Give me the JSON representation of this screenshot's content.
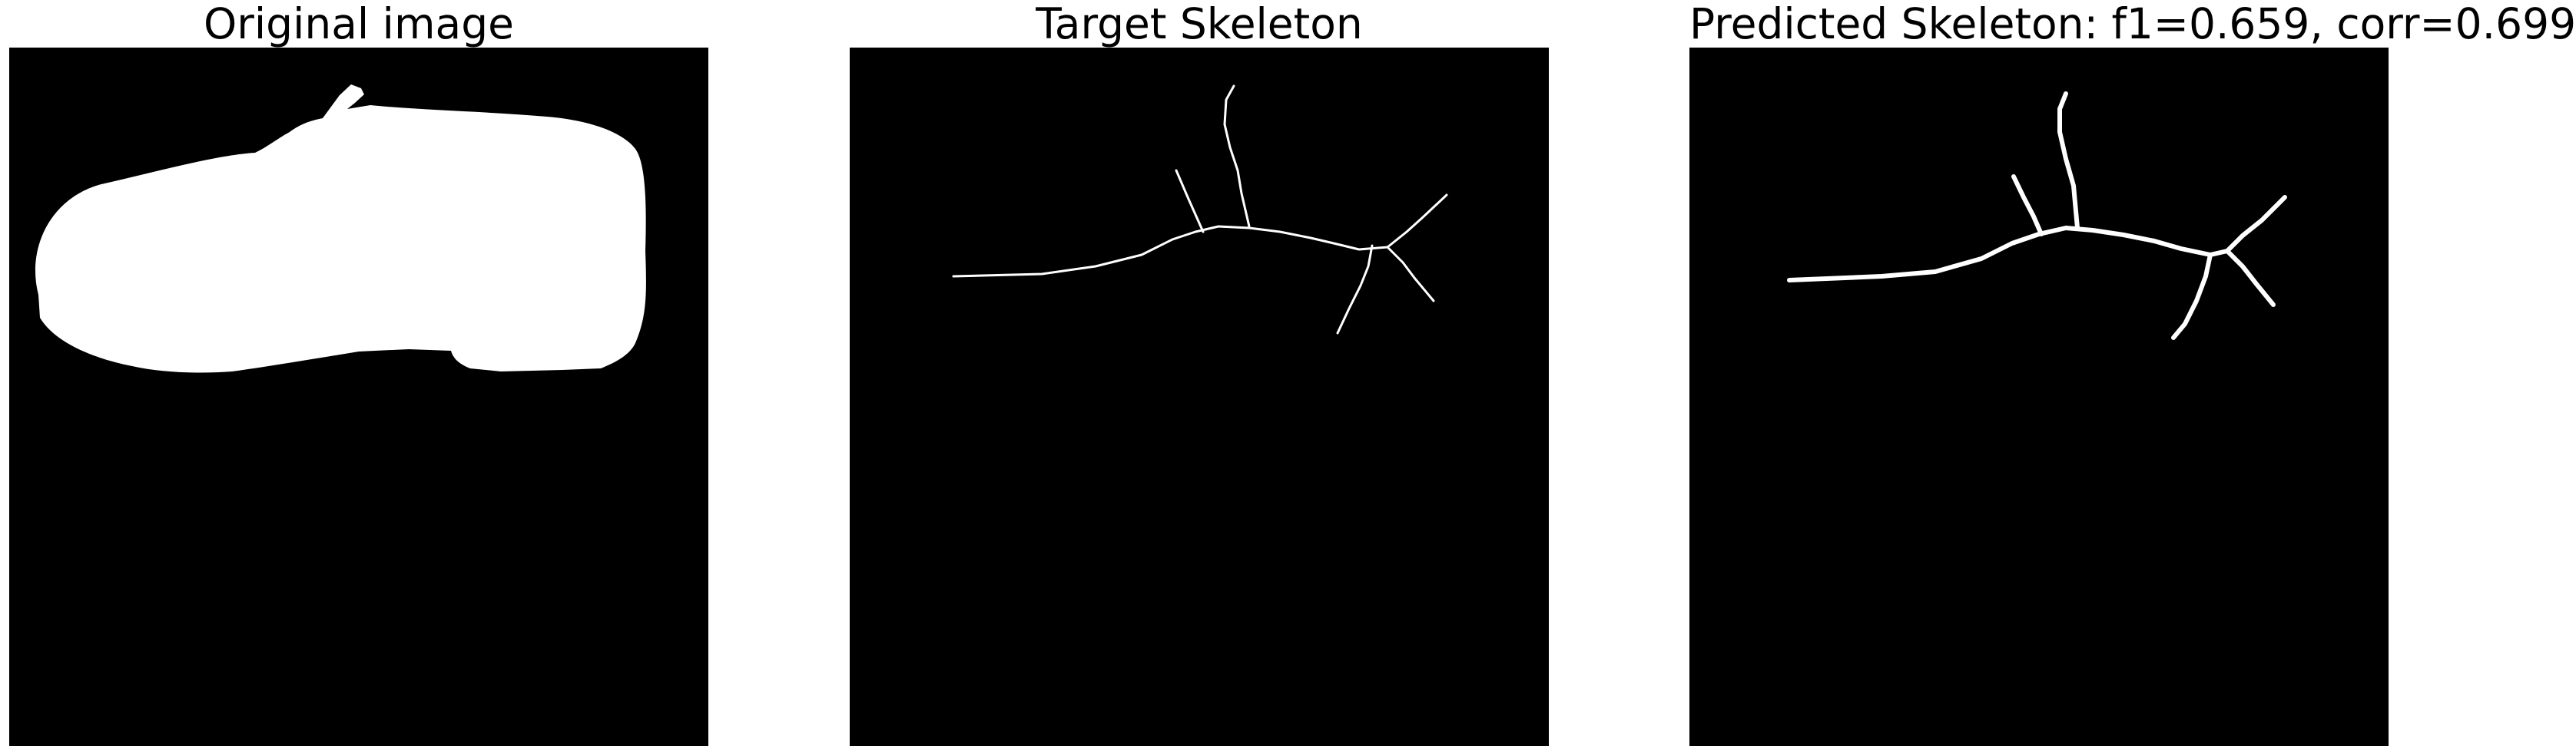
{
  "panels": [
    {
      "title": "Original image"
    },
    {
      "title": "Target Skeleton"
    },
    {
      "title": "Predicted Skeleton: f1=0.659, corr=0.699"
    }
  ],
  "metrics": {
    "f1": 0.659,
    "corr": 0.699
  },
  "colors": {
    "background": "#000000",
    "foreground": "#ffffff",
    "page": "#ffffff"
  }
}
